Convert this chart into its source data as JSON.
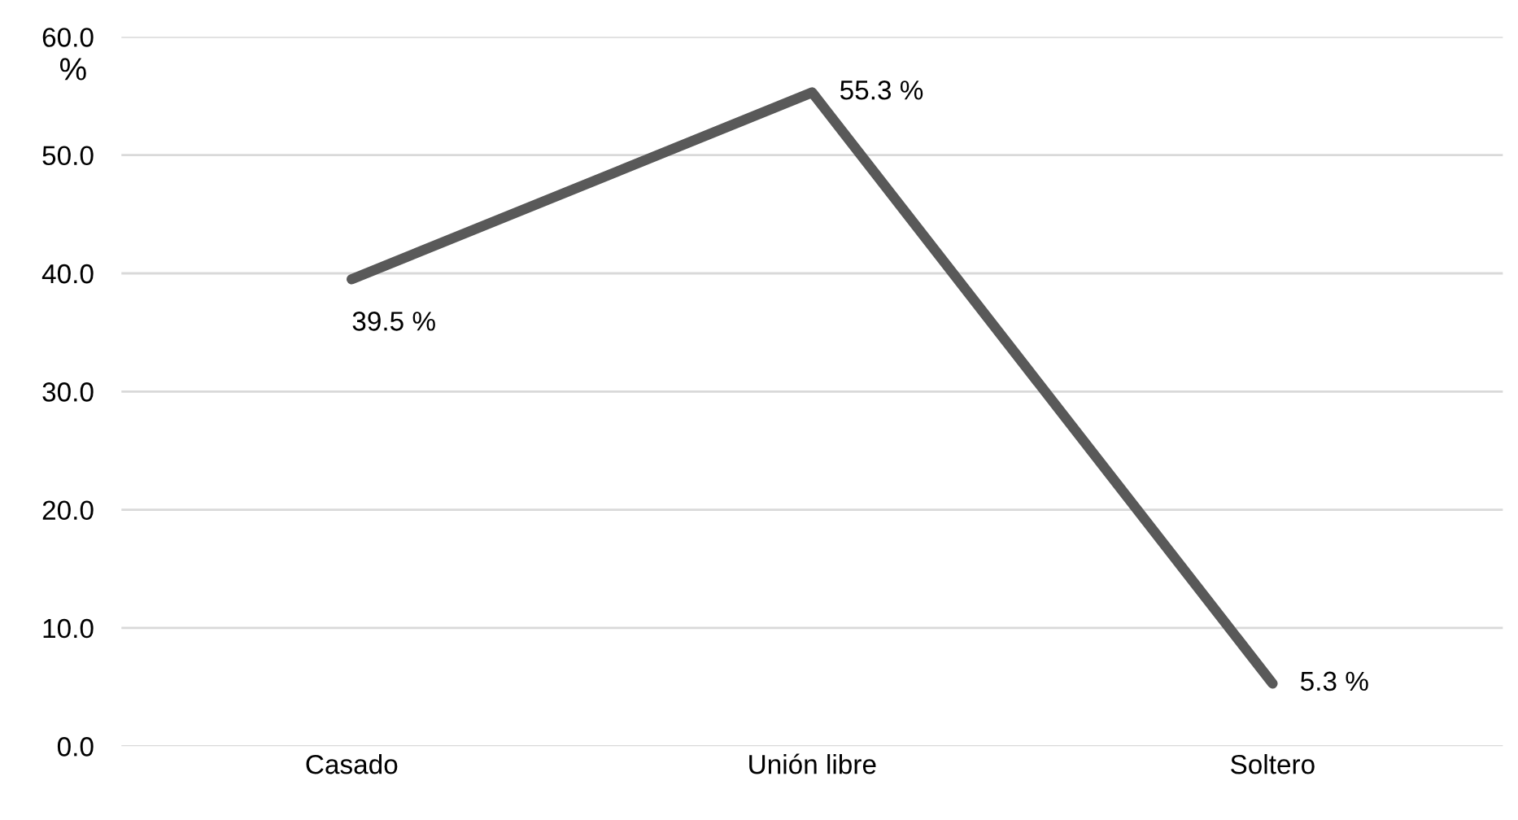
{
  "chart_data": {
    "type": "line",
    "ylabel": "%",
    "categories": [
      "Casado",
      "Unión libre",
      "Soltero"
    ],
    "series": [
      {
        "color": "#595959",
        "values": [
          39.5,
          55.3,
          5.3
        ],
        "value_labels": [
          "39.5 %",
          "55.3 %",
          "5.3 %"
        ]
      }
    ],
    "ylim": [
      0,
      60
    ],
    "yticks": [
      {
        "value": 0,
        "label": "0.0"
      },
      {
        "value": 10,
        "label": "10.0"
      },
      {
        "value": 20,
        "label": "20.0"
      },
      {
        "value": 30,
        "label": "30.0"
      },
      {
        "value": 40,
        "label": "40.0"
      },
      {
        "value": 50,
        "label": "50.0"
      },
      {
        "value": 60,
        "label": "60.0"
      }
    ],
    "grid": "y",
    "marker": "none",
    "line_style": "solid",
    "legend": false
  }
}
